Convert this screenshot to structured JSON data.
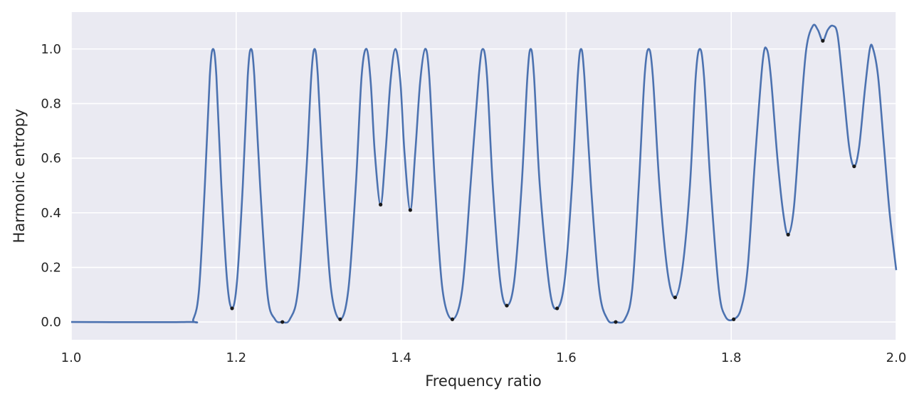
{
  "chart_data": {
    "type": "line",
    "title": "",
    "xlabel": "Frequency ratio",
    "ylabel": "Harmonic entropy",
    "xlim": [
      1.0,
      2.0
    ],
    "ylim": [
      -0.065,
      1.135
    ],
    "xticks": [
      1.0,
      1.2,
      1.4,
      1.6,
      1.8,
      2.0
    ],
    "xtick_labels": [
      "1.0",
      "1.2",
      "1.4",
      "1.6",
      "1.8",
      "2.0"
    ],
    "yticks": [
      0.0,
      0.2,
      0.4,
      0.6,
      0.8,
      1.0
    ],
    "ytick_labels": [
      "0.0",
      "0.2",
      "0.4",
      "0.6",
      "0.8",
      "1.0"
    ],
    "grid": true,
    "colors": {
      "background": "#eaeaf2",
      "grid": "#ffffff",
      "line": "#4c72b0",
      "marker": "#1a1a1a"
    },
    "series": [
      {
        "points": [
          [
            1.0,
            0.0
          ],
          [
            1.14,
            0.0
          ],
          [
            1.148,
            0.01
          ],
          [
            1.155,
            0.12
          ],
          [
            1.162,
            0.5
          ],
          [
            1.168,
            0.9
          ],
          [
            1.172,
            1.0
          ],
          [
            1.176,
            0.9
          ],
          [
            1.182,
            0.5
          ],
          [
            1.189,
            0.15
          ],
          [
            1.195,
            0.05
          ],
          [
            1.201,
            0.15
          ],
          [
            1.208,
            0.5
          ],
          [
            1.214,
            0.9
          ],
          [
            1.218,
            1.0
          ],
          [
            1.222,
            0.9
          ],
          [
            1.229,
            0.5
          ],
          [
            1.238,
            0.1
          ],
          [
            1.247,
            0.01
          ],
          [
            1.256,
            0.0
          ],
          [
            1.265,
            0.01
          ],
          [
            1.275,
            0.12
          ],
          [
            1.285,
            0.55
          ],
          [
            1.291,
            0.9
          ],
          [
            1.295,
            1.0
          ],
          [
            1.299,
            0.9
          ],
          [
            1.306,
            0.5
          ],
          [
            1.315,
            0.12
          ],
          [
            1.326,
            0.01
          ],
          [
            1.336,
            0.12
          ],
          [
            1.345,
            0.5
          ],
          [
            1.352,
            0.9
          ],
          [
            1.358,
            1.0
          ],
          [
            1.363,
            0.88
          ],
          [
            1.368,
            0.62
          ],
          [
            1.375,
            0.43
          ],
          [
            1.381,
            0.62
          ],
          [
            1.387,
            0.88
          ],
          [
            1.393,
            1.0
          ],
          [
            1.399,
            0.88
          ],
          [
            1.404,
            0.62
          ],
          [
            1.411,
            0.41
          ],
          [
            1.417,
            0.62
          ],
          [
            1.423,
            0.88
          ],
          [
            1.429,
            1.0
          ],
          [
            1.434,
            0.9
          ],
          [
            1.441,
            0.5
          ],
          [
            1.45,
            0.12
          ],
          [
            1.462,
            0.01
          ],
          [
            1.474,
            0.12
          ],
          [
            1.484,
            0.5
          ],
          [
            1.494,
            0.9
          ],
          [
            1.499,
            1.0
          ],
          [
            1.504,
            0.9
          ],
          [
            1.511,
            0.5
          ],
          [
            1.52,
            0.15
          ],
          [
            1.528,
            0.06
          ],
          [
            1.537,
            0.15
          ],
          [
            1.546,
            0.5
          ],
          [
            1.553,
            0.9
          ],
          [
            1.557,
            1.0
          ],
          [
            1.561,
            0.9
          ],
          [
            1.568,
            0.5
          ],
          [
            1.58,
            0.12
          ],
          [
            1.589,
            0.05
          ],
          [
            1.598,
            0.15
          ],
          [
            1.607,
            0.5
          ],
          [
            1.614,
            0.9
          ],
          [
            1.618,
            1.0
          ],
          [
            1.622,
            0.9
          ],
          [
            1.63,
            0.5
          ],
          [
            1.64,
            0.12
          ],
          [
            1.65,
            0.01
          ],
          [
            1.66,
            0.0
          ],
          [
            1.671,
            0.01
          ],
          [
            1.68,
            0.12
          ],
          [
            1.688,
            0.5
          ],
          [
            1.695,
            0.9
          ],
          [
            1.7,
            1.0
          ],
          [
            1.705,
            0.9
          ],
          [
            1.713,
            0.5
          ],
          [
            1.723,
            0.18
          ],
          [
            1.732,
            0.09
          ],
          [
            1.741,
            0.2
          ],
          [
            1.75,
            0.5
          ],
          [
            1.757,
            0.9
          ],
          [
            1.762,
            1.0
          ],
          [
            1.767,
            0.9
          ],
          [
            1.775,
            0.5
          ],
          [
            1.785,
            0.12
          ],
          [
            1.793,
            0.02
          ],
          [
            1.803,
            0.01
          ],
          [
            1.812,
            0.05
          ],
          [
            1.82,
            0.2
          ],
          [
            1.829,
            0.6
          ],
          [
            1.838,
            0.95
          ],
          [
            1.843,
            1.0
          ],
          [
            1.848,
            0.9
          ],
          [
            1.856,
            0.6
          ],
          [
            1.863,
            0.4
          ],
          [
            1.869,
            0.32
          ],
          [
            1.876,
            0.42
          ],
          [
            1.884,
            0.75
          ],
          [
            1.891,
            1.0
          ],
          [
            1.899,
            1.085
          ],
          [
            1.905,
            1.07
          ],
          [
            1.911,
            1.03
          ],
          [
            1.917,
            1.07
          ],
          [
            1.923,
            1.085
          ],
          [
            1.929,
            1.05
          ],
          [
            1.936,
            0.85
          ],
          [
            1.943,
            0.64
          ],
          [
            1.949,
            0.57
          ],
          [
            1.955,
            0.64
          ],
          [
            1.962,
            0.85
          ],
          [
            1.968,
            1.0
          ],
          [
            1.972,
            1.0
          ],
          [
            1.978,
            0.9
          ],
          [
            1.985,
            0.65
          ],
          [
            1.992,
            0.4
          ],
          [
            2.0,
            0.19
          ]
        ]
      }
    ],
    "minima": [
      [
        1.195,
        0.05
      ],
      [
        1.256,
        0.0
      ],
      [
        1.326,
        0.01
      ],
      [
        1.375,
        0.43
      ],
      [
        1.411,
        0.41
      ],
      [
        1.462,
        0.01
      ],
      [
        1.528,
        0.06
      ],
      [
        1.589,
        0.05
      ],
      [
        1.66,
        0.0
      ],
      [
        1.732,
        0.09
      ],
      [
        1.803,
        0.01
      ],
      [
        1.869,
        0.32
      ],
      [
        1.911,
        1.03
      ],
      [
        1.949,
        0.57
      ]
    ]
  }
}
